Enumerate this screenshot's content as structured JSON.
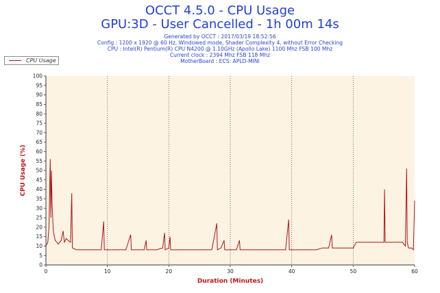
{
  "header": {
    "title_line1": "OCCT 4.5.0 - CPU Usage",
    "title_line2": "GPU:3D - User Cancelled - 1h 00m 14s",
    "generated": "Generated by OCCT : 2017/03/19 18:52:56",
    "config": "Config : 1200 x 1920 @ 60 Hz, Windowed mode, Shader Complexity 4, without Error Checking",
    "cpu": "CPU : Intel(R) Pentium(R) CPU N4200 @ 1.10GHz (Apollo Lake) 1100 Mhz FSB 100 Mhz",
    "clock": "Current clock : 2394 Mhz FSB 118 Mhz",
    "motherboard": "MotherBoard : ECS: APLD-MINI"
  },
  "colors": {
    "title": "#1f3fd6",
    "series": "#b01010",
    "axis_label": "#c01818",
    "plot_background": "#fdf3e3"
  },
  "chart_data": {
    "type": "line",
    "xlabel": "Duration (Minutes)",
    "ylabel": "CPU Usage (%)",
    "xlim": [
      0,
      60
    ],
    "ylim": [
      0,
      100
    ],
    "x_ticks": [
      "0",
      "10",
      "20",
      "30",
      "40",
      "50",
      "60"
    ],
    "y_ticks": [
      "0",
      "5",
      "10",
      "15",
      "20",
      "25",
      "30",
      "35",
      "40",
      "45",
      "50",
      "55",
      "60",
      "65",
      "70",
      "75",
      "80",
      "85",
      "90",
      "95",
      "100"
    ],
    "vertical_gridlines": [
      10,
      20,
      30,
      40,
      50
    ],
    "legend": {
      "position": "top-left",
      "entries": [
        "CPU Usage"
      ]
    },
    "series": [
      {
        "name": "CPU Usage",
        "points": [
          [
            0.0,
            10
          ],
          [
            0.3,
            12
          ],
          [
            0.5,
            20
          ],
          [
            0.7,
            56
          ],
          [
            0.8,
            25
          ],
          [
            0.9,
            50
          ],
          [
            1.0,
            32
          ],
          [
            1.2,
            18
          ],
          [
            1.5,
            13
          ],
          [
            1.8,
            12
          ],
          [
            2.0,
            11
          ],
          [
            2.5,
            13
          ],
          [
            2.8,
            18
          ],
          [
            3.0,
            12
          ],
          [
            3.3,
            14
          ],
          [
            3.6,
            13
          ],
          [
            4.0,
            12
          ],
          [
            4.2,
            38
          ],
          [
            4.3,
            9
          ],
          [
            5.0,
            8
          ],
          [
            6.0,
            8
          ],
          [
            7.0,
            8
          ],
          [
            8.0,
            8
          ],
          [
            9.0,
            8
          ],
          [
            9.4,
            23
          ],
          [
            9.5,
            8
          ],
          [
            10.0,
            8
          ],
          [
            11.0,
            8
          ],
          [
            12.0,
            8
          ],
          [
            13.0,
            8
          ],
          [
            13.8,
            16
          ],
          [
            13.9,
            8
          ],
          [
            15.0,
            8
          ],
          [
            16.0,
            8
          ],
          [
            16.3,
            13
          ],
          [
            16.4,
            8
          ],
          [
            17.0,
            8
          ],
          [
            18.0,
            8
          ],
          [
            19.0,
            9
          ],
          [
            19.3,
            17
          ],
          [
            19.4,
            8
          ],
          [
            20.0,
            9
          ],
          [
            20.2,
            15
          ],
          [
            20.3,
            8
          ],
          [
            21.0,
            8
          ],
          [
            22.0,
            8
          ],
          [
            23.0,
            8
          ],
          [
            24.0,
            8
          ],
          [
            25.0,
            8
          ],
          [
            26.0,
            8
          ],
          [
            27.0,
            8
          ],
          [
            27.8,
            22
          ],
          [
            27.9,
            8
          ],
          [
            28.5,
            9
          ],
          [
            29.0,
            13
          ],
          [
            29.1,
            8
          ],
          [
            30.0,
            8
          ],
          [
            31.0,
            8
          ],
          [
            31.5,
            13
          ],
          [
            31.6,
            8
          ],
          [
            32.0,
            8
          ],
          [
            33.0,
            8
          ],
          [
            34.0,
            8
          ],
          [
            35.0,
            8
          ],
          [
            36.0,
            8
          ],
          [
            37.0,
            8
          ],
          [
            38.0,
            8
          ],
          [
            39.0,
            8
          ],
          [
            39.5,
            24
          ],
          [
            39.6,
            8
          ],
          [
            40.0,
            8
          ],
          [
            41.0,
            8
          ],
          [
            42.0,
            8
          ],
          [
            43.0,
            8
          ],
          [
            44.0,
            8
          ],
          [
            45.0,
            9
          ],
          [
            46.0,
            9
          ],
          [
            46.5,
            16
          ],
          [
            46.6,
            9
          ],
          [
            47.0,
            9
          ],
          [
            48.0,
            9
          ],
          [
            49.0,
            9
          ],
          [
            50.0,
            9
          ],
          [
            50.5,
            12
          ],
          [
            51.0,
            12
          ],
          [
            52.0,
            12
          ],
          [
            53.0,
            12
          ],
          [
            54.0,
            12
          ],
          [
            55.0,
            12
          ],
          [
            55.1,
            40
          ],
          [
            55.2,
            12
          ],
          [
            56.0,
            12
          ],
          [
            57.0,
            12
          ],
          [
            58.0,
            12
          ],
          [
            58.5,
            10
          ],
          [
            58.7,
            51
          ],
          [
            58.8,
            12
          ],
          [
            59.0,
            9
          ],
          [
            59.5,
            9
          ],
          [
            59.8,
            8
          ],
          [
            60.0,
            34
          ]
        ]
      }
    ]
  }
}
